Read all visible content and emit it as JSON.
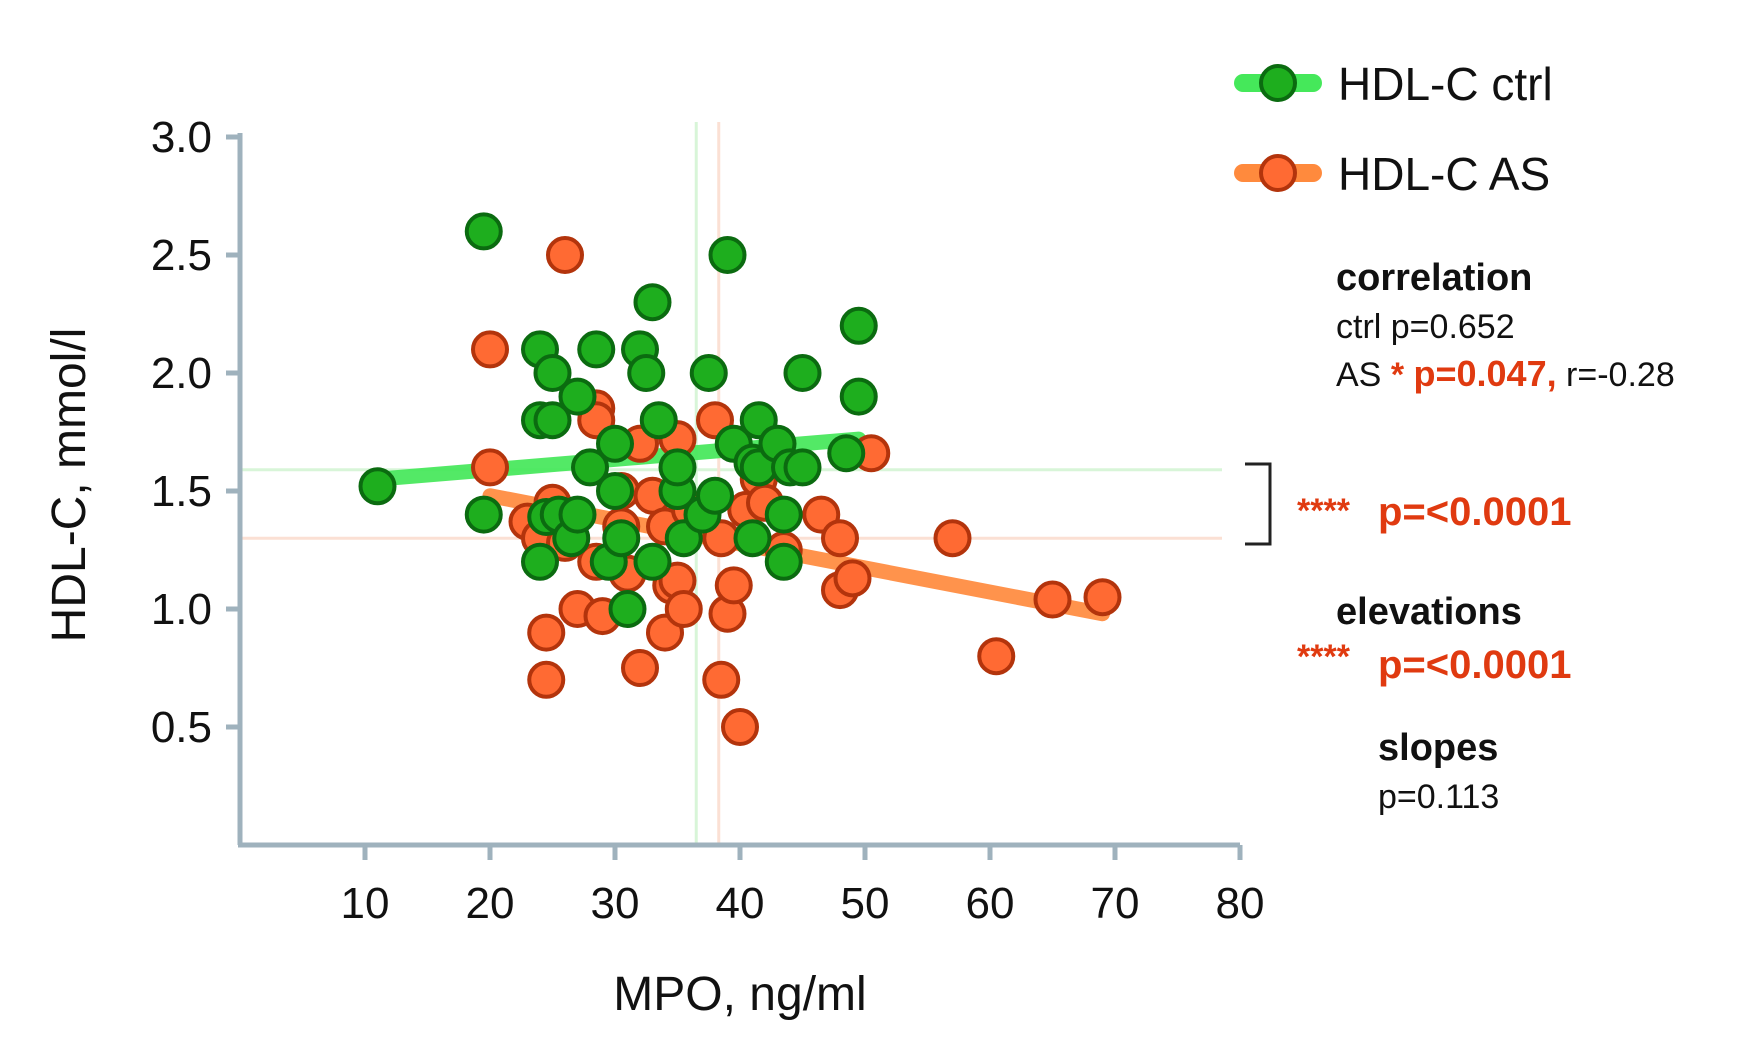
{
  "chart_data": {
    "type": "scatter",
    "xlabel": "MPO, ng/ml",
    "ylabel": "HDL-C, mmol/l",
    "xlim": [
      0,
      80
    ],
    "ylim": [
      0,
      3.0
    ],
    "x_ticks": [
      "10",
      "20",
      "30",
      "40",
      "50",
      "60",
      "70",
      "80"
    ],
    "y_ticks": [
      "0.5",
      "1.0",
      "1.5",
      "2.0",
      "2.5",
      "3.0"
    ],
    "colors": {
      "ctrl_fill": "#1eae1e",
      "ctrl_edge": "#0b6b10",
      "ctrl_line": "#45e85a",
      "as_fill": "#ff6a33",
      "as_edge": "#b3340c",
      "as_line": "#ff8a3d",
      "axis": "#9fb2bd",
      "red": "#e03a10"
    },
    "series": [
      {
        "name": "HDL-C AS",
        "regression": {
          "x0": 20,
          "y0": 1.48,
          "x1": 69,
          "y1": 0.98
        },
        "mean_x": 38.3,
        "mean_y": 1.3,
        "points": [
          [
            26,
            2.5
          ],
          [
            20,
            2.1
          ],
          [
            20,
            1.6
          ],
          [
            23,
            1.37
          ],
          [
            24,
            1.3
          ],
          [
            25,
            1.45
          ],
          [
            26,
            1.28
          ],
          [
            27,
            1.0
          ],
          [
            24.5,
            0.9
          ],
          [
            24.5,
            0.7
          ],
          [
            28.5,
            1.85
          ],
          [
            28.5,
            1.8
          ],
          [
            28.5,
            1.2
          ],
          [
            29,
            0.97
          ],
          [
            30.5,
            1.5
          ],
          [
            30.5,
            1.35
          ],
          [
            31,
            1.15
          ],
          [
            32,
            1.7
          ],
          [
            32,
            0.75
          ],
          [
            33,
            1.48
          ],
          [
            34,
            1.35
          ],
          [
            34,
            0.9
          ],
          [
            34.5,
            1.1
          ],
          [
            35,
            1.72
          ],
          [
            35,
            1.12
          ],
          [
            35.5,
            1.0
          ],
          [
            36,
            1.42
          ],
          [
            38,
            1.8
          ],
          [
            38.5,
            1.3
          ],
          [
            38.5,
            0.7
          ],
          [
            39,
            0.98
          ],
          [
            39.5,
            1.1
          ],
          [
            40,
            0.5
          ],
          [
            40.5,
            1.42
          ],
          [
            41.5,
            1.55
          ],
          [
            42,
            1.45
          ],
          [
            43.5,
            1.25
          ],
          [
            46.5,
            1.4
          ],
          [
            48,
            1.3
          ],
          [
            48,
            1.08
          ],
          [
            49,
            1.13
          ],
          [
            50.5,
            1.66
          ],
          [
            57,
            1.3
          ],
          [
            60.5,
            0.8
          ],
          [
            65,
            1.04
          ],
          [
            69,
            1.05
          ]
        ]
      },
      {
        "name": "HDL-C ctrl",
        "regression": {
          "x0": 11,
          "y0": 1.55,
          "x1": 49.5,
          "y1": 1.72
        },
        "mean_x": 36.5,
        "mean_y": 1.59,
        "points": [
          [
            11,
            1.52
          ],
          [
            19.5,
            2.6
          ],
          [
            19.5,
            1.4
          ],
          [
            24,
            2.1
          ],
          [
            24,
            1.8
          ],
          [
            24,
            1.2
          ],
          [
            25,
            2.0
          ],
          [
            25,
            1.8
          ],
          [
            24.5,
            1.39
          ],
          [
            25.5,
            1.4
          ],
          [
            26.5,
            1.3
          ],
          [
            27,
            1.9
          ],
          [
            27,
            1.4
          ],
          [
            28,
            1.6
          ],
          [
            28.5,
            2.1
          ],
          [
            29.5,
            1.2
          ],
          [
            30,
            1.7
          ],
          [
            30,
            1.5
          ],
          [
            30.5,
            1.3
          ],
          [
            31,
            1.0
          ],
          [
            32,
            2.1
          ],
          [
            32.5,
            2.0
          ],
          [
            33,
            2.3
          ],
          [
            33,
            1.2
          ],
          [
            33.5,
            1.8
          ],
          [
            35,
            1.5
          ],
          [
            35,
            1.6
          ],
          [
            35.5,
            1.3
          ],
          [
            37,
            1.4
          ],
          [
            37.5,
            2.0
          ],
          [
            38,
            1.48
          ],
          [
            39,
            2.5
          ],
          [
            39.5,
            1.7
          ],
          [
            41,
            1.3
          ],
          [
            41,
            1.62
          ],
          [
            41.5,
            1.6
          ],
          [
            41.5,
            1.8
          ],
          [
            43,
            1.7
          ],
          [
            43.5,
            1.4
          ],
          [
            43.5,
            1.2
          ],
          [
            44,
            1.6
          ],
          [
            45,
            2.0
          ],
          [
            45,
            1.6
          ],
          [
            48.5,
            1.66
          ],
          [
            49.5,
            2.2
          ],
          [
            49.5,
            1.9
          ]
        ]
      }
    ],
    "legend": [
      "HDL-C ctrl",
      "HDL-C AS"
    ],
    "legend_position": "top-right"
  },
  "stats": {
    "correlation_title": "correlation",
    "ctrl_line": "ctrl p=0.652",
    "as_prefix": "AS ",
    "as_star": "* ",
    "as_p": "p=0.047,",
    "as_r": " r=-0.28",
    "bracket_stars": "****",
    "bracket_p": "p=<0.0001",
    "elevations_title": "elevations",
    "elevations_stars": "****",
    "elevations_p": "p=<0.0001",
    "slopes_title": "slopes",
    "slopes_p": "p=0.113"
  }
}
